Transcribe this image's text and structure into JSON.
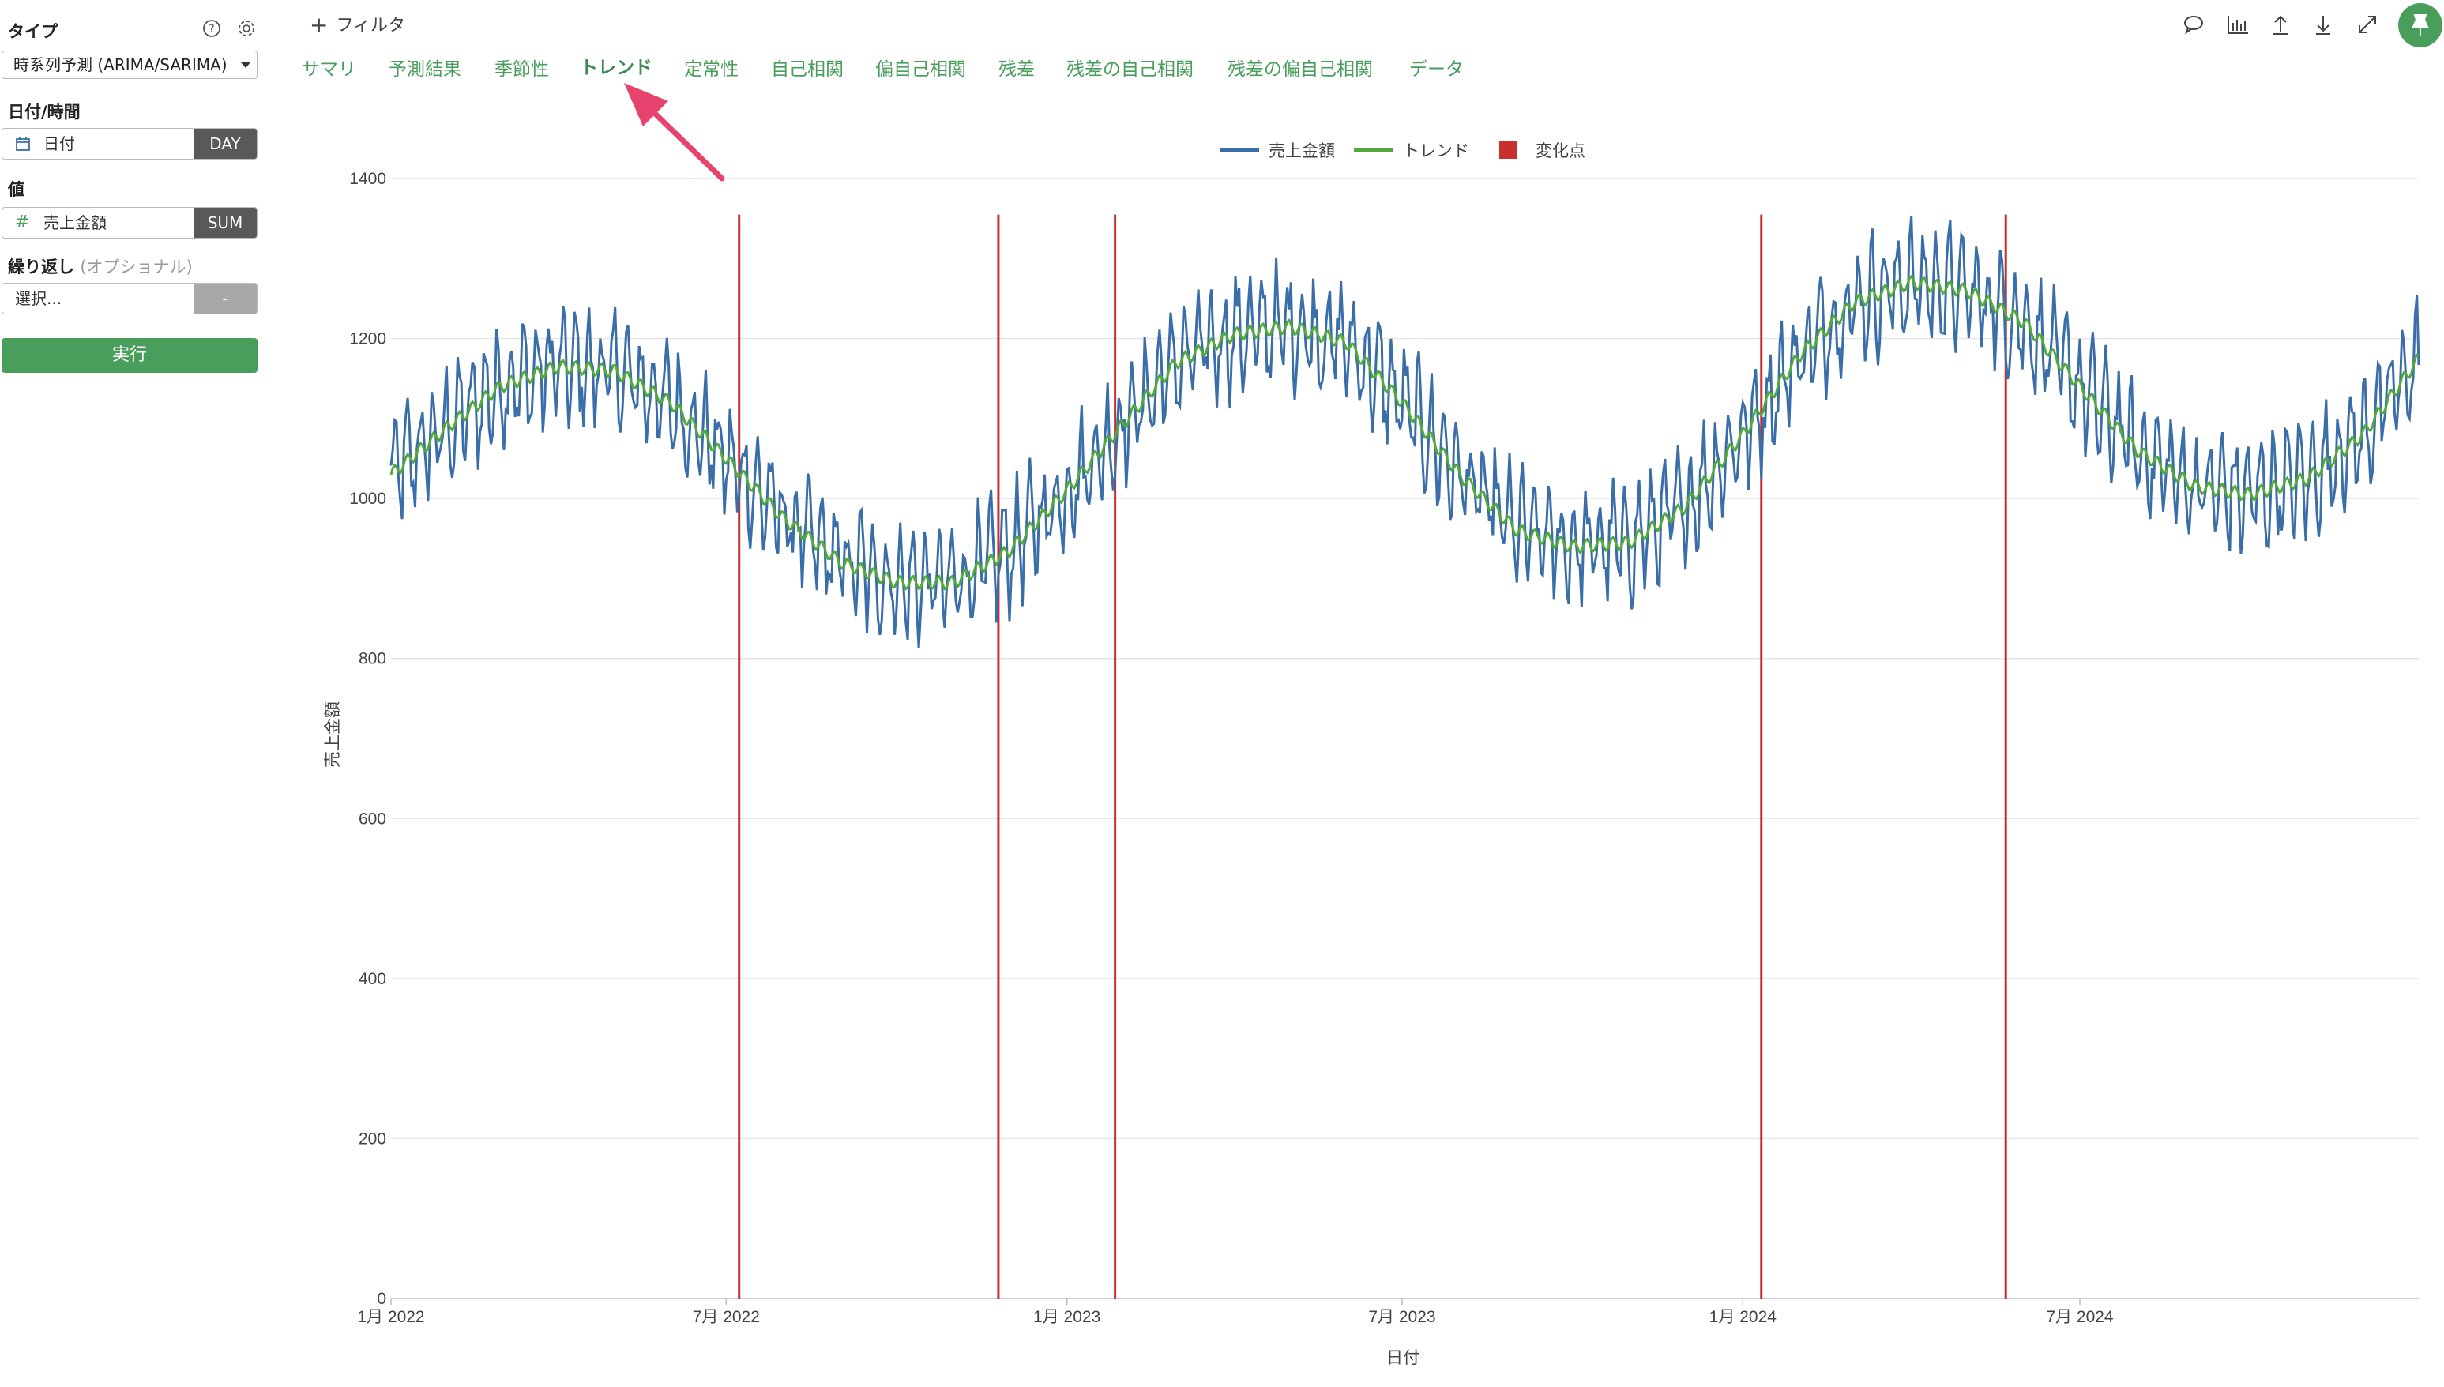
{
  "sidebar": {
    "type_label": "タイプ",
    "type_value": "時系列予測 (ARIMA/SARIMA)",
    "date_label": "日付/時間",
    "date_field": "日付",
    "date_unit": "DAY",
    "value_label": "値",
    "value_field": "売上金額",
    "value_agg": "SUM",
    "repeat_label": "繰り返し",
    "repeat_optional": "(オプショナル)",
    "repeat_placeholder": "選択...",
    "repeat_btn": "-",
    "run_label": "実行",
    "icons": {
      "help": "help-icon",
      "settings": "gear-icon",
      "calendar": "calendar-icon",
      "number": "hash-icon"
    }
  },
  "header": {
    "filter_label": "フィルタ",
    "tabs": [
      {
        "label": "サマリ"
      },
      {
        "label": "予測結果"
      },
      {
        "label": "季節性"
      },
      {
        "label": "トレンド",
        "active": true
      },
      {
        "label": "定常性"
      },
      {
        "label": "自己相関"
      },
      {
        "label": "偏自己相関"
      },
      {
        "label": "残差"
      },
      {
        "label": "残差の自己相関"
      },
      {
        "label": "残差の偏自己相関"
      },
      {
        "label": "データ"
      }
    ],
    "toolbar_icons": [
      "comment-icon",
      "chart-icon",
      "upload-icon",
      "download-icon",
      "expand-icon",
      "pin-icon"
    ]
  },
  "colors": {
    "accent": "#4a9e5c",
    "series_sales": "#3a6ea8",
    "series_trend": "#52a83a",
    "changepoint": "#c8302e",
    "annotation_arrow": "#e8436e"
  },
  "chart_data": {
    "type": "line",
    "xlabel": "日付",
    "ylabel": "売上金額",
    "ylim": [
      0,
      1400
    ],
    "yticks": [
      0,
      200,
      400,
      600,
      800,
      1000,
      1200,
      1400
    ],
    "xlim": [
      "2022-01-01",
      "2024-12-31"
    ],
    "xticks": [
      {
        "date": "2022-01-01",
        "label": "1月 2022"
      },
      {
        "date": "2022-07-01",
        "label": "7月 2022"
      },
      {
        "date": "2023-01-01",
        "label": "1月 2023"
      },
      {
        "date": "2023-07-01",
        "label": "7月 2023"
      },
      {
        "date": "2024-01-01",
        "label": "1月 2024"
      },
      {
        "date": "2024-07-01",
        "label": "7月 2024"
      }
    ],
    "grid": true,
    "legend_position": "top-center",
    "legend": [
      "売上金額",
      "トレンド",
      "変化点"
    ],
    "series": [
      {
        "name": "トレンド",
        "x": [
          "2022-01-01",
          "2022-02-01",
          "2022-03-01",
          "2022-04-01",
          "2022-05-01",
          "2022-06-01",
          "2022-07-01",
          "2022-08-01",
          "2022-09-01",
          "2022-10-01",
          "2022-11-01",
          "2022-12-01",
          "2023-01-01",
          "2023-02-01",
          "2023-03-01",
          "2023-04-01",
          "2023-05-01",
          "2023-06-01",
          "2023-07-01",
          "2023-08-01",
          "2023-09-01",
          "2023-10-01",
          "2023-11-01",
          "2023-12-01",
          "2024-01-01",
          "2024-02-01",
          "2024-03-01",
          "2024-04-01",
          "2024-05-01",
          "2024-06-01",
          "2024-07-01",
          "2024-08-01",
          "2024-09-01",
          "2024-10-01",
          "2024-11-01",
          "2024-12-01",
          "2024-12-31"
        ],
        "y": [
          1030,
          1090,
          1140,
          1165,
          1160,
          1120,
          1050,
          975,
          920,
          895,
          895,
          935,
          1010,
          1095,
          1170,
          1205,
          1215,
          1195,
          1120,
          1030,
          960,
          940,
          945,
          990,
          1080,
          1180,
          1245,
          1270,
          1260,
          1220,
          1140,
          1060,
          1015,
          1005,
          1025,
          1080,
          1175
        ]
      },
      {
        "name": "売上金額",
        "style": "daily values fluctuating about ±80 around the trend with weekly seasonality and occasional spikes",
        "x": [
          "2022-01-01",
          "2022-02-01",
          "2022-03-01",
          "2022-04-01",
          "2022-05-01",
          "2022-06-01",
          "2022-07-01",
          "2022-08-01",
          "2022-09-01",
          "2022-10-01",
          "2022-11-01",
          "2022-12-01",
          "2023-01-01",
          "2023-02-01",
          "2023-03-01",
          "2023-04-01",
          "2023-05-01",
          "2023-06-01",
          "2023-07-01",
          "2023-08-01",
          "2023-09-01",
          "2023-10-01",
          "2023-11-01",
          "2023-12-01",
          "2024-01-01",
          "2024-02-01",
          "2024-03-01",
          "2024-04-01",
          "2024-05-01",
          "2024-06-01",
          "2024-07-01",
          "2024-08-01",
          "2024-09-01",
          "2024-10-01",
          "2024-11-01",
          "2024-12-01",
          "2024-12-31"
        ],
        "y": [
          1030,
          1090,
          1140,
          1165,
          1160,
          1120,
          1050,
          975,
          920,
          895,
          895,
          935,
          1010,
          1095,
          1170,
          1205,
          1215,
          1195,
          1120,
          1030,
          960,
          940,
          945,
          990,
          1080,
          1180,
          1245,
          1270,
          1260,
          1220,
          1140,
          1060,
          1015,
          1005,
          1025,
          1080,
          1175
        ],
        "amplitude": 80
      }
    ],
    "changepoints": [
      "2022-07-08",
      "2022-11-25",
      "2023-01-27",
      "2024-01-11",
      "2024-05-22"
    ]
  }
}
